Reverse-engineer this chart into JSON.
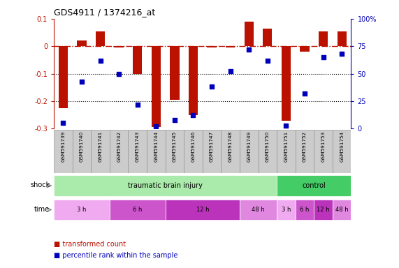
{
  "title": "GDS4911 / 1374216_at",
  "samples": [
    "GSM591739",
    "GSM591740",
    "GSM591741",
    "GSM591742",
    "GSM591743",
    "GSM591744",
    "GSM591745",
    "GSM591746",
    "GSM591747",
    "GSM591748",
    "GSM591749",
    "GSM591750",
    "GSM591751",
    "GSM591752",
    "GSM591753",
    "GSM591754"
  ],
  "red_values": [
    -0.225,
    0.02,
    0.055,
    -0.005,
    -0.1,
    -0.295,
    -0.195,
    -0.25,
    -0.005,
    -0.005,
    0.09,
    0.065,
    -0.27,
    -0.02,
    0.055,
    0.055
  ],
  "blue_pct": [
    5,
    43,
    62,
    50,
    22,
    2,
    8,
    12,
    38,
    52,
    72,
    62,
    3,
    32,
    65,
    68
  ],
  "ylim_left": [
    -0.3,
    0.1
  ],
  "ylim_right": [
    0,
    100
  ],
  "dotted_lines": [
    -0.1,
    -0.2
  ],
  "shock_groups": [
    {
      "label": "traumatic brain injury",
      "start": 0,
      "end": 12,
      "color": "#aaeaaa"
    },
    {
      "label": "control",
      "start": 12,
      "end": 16,
      "color": "#44cc66"
    }
  ],
  "time_groups": [
    {
      "label": "3 h",
      "start": 0,
      "end": 3,
      "color": "#f0aaf0"
    },
    {
      "label": "6 h",
      "start": 3,
      "end": 6,
      "color": "#cc55cc"
    },
    {
      "label": "12 h",
      "start": 6,
      "end": 10,
      "color": "#bb33bb"
    },
    {
      "label": "48 h",
      "start": 10,
      "end": 12,
      "color": "#e088e0"
    },
    {
      "label": "3 h",
      "start": 12,
      "end": 13,
      "color": "#f0aaf0"
    },
    {
      "label": "6 h",
      "start": 13,
      "end": 14,
      "color": "#cc55cc"
    },
    {
      "label": "12 h",
      "start": 14,
      "end": 15,
      "color": "#bb33bb"
    },
    {
      "label": "48 h",
      "start": 15,
      "end": 16,
      "color": "#e088e0"
    }
  ],
  "red_color": "#bb1100",
  "blue_color": "#0000bb",
  "sample_box_color": "#cccccc",
  "sample_box_edge": "#888888",
  "legend_items": [
    {
      "label": "transformed count",
      "color": "#bb1100"
    },
    {
      "label": "percentile rank within the sample",
      "color": "#0000bb"
    }
  ],
  "left_labels": [
    "shock",
    "time"
  ],
  "left_arrow_color": "#888888"
}
